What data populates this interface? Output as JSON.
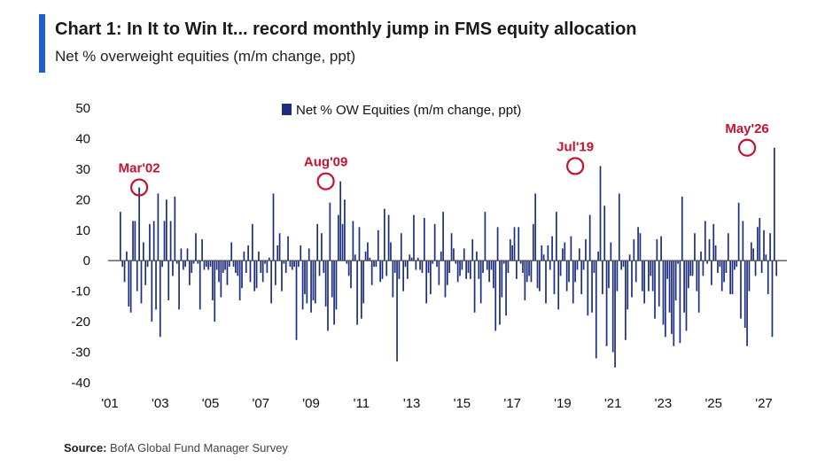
{
  "title": "Chart 1: In It to Win It... record monthly jump in FMS equity allocation",
  "subtitle": "Net % overweight equities (m/m change, ppt)",
  "source_label": "Source:",
  "source_text": "BofA Global Fund Manager Survey",
  "colors": {
    "accent": "#1f5fd1",
    "bar": "#1c2f7e",
    "annotation": "#c4122f"
  },
  "chart_data": {
    "type": "bar",
    "series": [
      {
        "name": "Net % OW Equities (m/m change, ppt)",
        "start": "2001-06",
        "values": [
          16,
          -2,
          -7,
          3,
          -15,
          -17,
          13,
          13,
          -10,
          24,
          -14,
          6,
          -8,
          -2,
          12,
          -20,
          13,
          -16,
          22,
          -25,
          -2,
          13,
          20,
          -13,
          13,
          -5,
          21,
          -1,
          -16,
          4,
          -3,
          -2,
          4,
          -8,
          -4,
          -1,
          9,
          -1,
          -16,
          7,
          -3,
          -2,
          -3,
          -2,
          -13,
          -20,
          -3,
          -7,
          -12,
          -4,
          -3,
          -8,
          -2,
          6,
          -2,
          -4,
          -5,
          -13,
          -9,
          3,
          -4,
          5,
          -7,
          12,
          -10,
          -9,
          3,
          -4,
          -7,
          -1,
          -4,
          1,
          -14,
          22,
          -8,
          5,
          9,
          -10,
          -1,
          -4,
          8,
          -2,
          -3,
          -2,
          -26,
          -2,
          5,
          -16,
          -11,
          -14,
          4,
          -17,
          -13,
          -14,
          12,
          -5,
          9,
          -4,
          -15,
          -23,
          19,
          -12,
          -21,
          -16,
          15,
          26,
          12,
          20,
          -1,
          -5,
          -9,
          13,
          2,
          -21,
          11,
          -19,
          -14,
          3,
          6,
          1,
          -8,
          -2,
          -2,
          10,
          -7,
          -6,
          17,
          -5,
          15,
          6,
          -12,
          -4,
          -33,
          -6,
          9,
          -10,
          -2,
          -6,
          2,
          1,
          15,
          -3,
          1,
          -3,
          -4,
          14,
          -14,
          -4,
          -11,
          -1,
          12,
          -2,
          -8,
          3,
          16,
          -12,
          -8,
          -4,
          9,
          4,
          -1,
          -7,
          -5,
          -3,
          4,
          -6,
          -4,
          -6,
          7,
          -17,
          3,
          -6,
          -14,
          -4,
          16,
          -3,
          -7,
          -3,
          -9,
          -23,
          11,
          -21,
          -12,
          -1,
          -18,
          -4,
          7,
          5,
          11,
          -6,
          11,
          -1,
          -4,
          -13,
          -7,
          -5,
          -7,
          12,
          22,
          -9,
          -10,
          5,
          2,
          -14,
          5,
          -3,
          8,
          -11,
          16,
          -16,
          -5,
          4,
          6,
          -10,
          -7,
          8,
          -14,
          -7,
          -3,
          4,
          -11,
          -3,
          7,
          -18,
          15,
          -17,
          -4,
          -32,
          3,
          31,
          -11,
          18,
          -28,
          -9,
          6,
          -30,
          -35,
          -10,
          22,
          -3,
          -2,
          -26,
          -16,
          2,
          -12,
          7,
          -7,
          11,
          9,
          -10,
          -14,
          0,
          -10,
          -5,
          -10,
          -19,
          7,
          -15,
          8,
          -21,
          -25,
          -6,
          -17,
          -24,
          -28,
          -13,
          -1,
          -27,
          21,
          -17,
          -23,
          -9,
          -5,
          -5,
          9,
          -10,
          -17,
          3,
          -5,
          13,
          -1,
          7,
          -8,
          12,
          5,
          -4,
          -2,
          -10,
          -7,
          -4,
          9,
          -11,
          -11,
          -3,
          -2,
          19,
          -19,
          13,
          -22,
          -28,
          -10,
          6,
          4,
          -5,
          11,
          14,
          -4,
          10,
          2,
          -11,
          9,
          -25,
          37,
          -5
        ]
      }
    ],
    "xlim": [
      2001,
      2027
    ],
    "ylim": [
      -40,
      50
    ],
    "yticks": [
      -40,
      -30,
      -20,
      -10,
      0,
      10,
      20,
      30,
      40,
      50
    ],
    "ytick_labels": [
      "-40",
      "-30",
      "-20",
      "-10",
      "0",
      "10",
      "20",
      "30",
      "40",
      "50"
    ],
    "xticks": [
      2001,
      2003,
      2005,
      2007,
      2009,
      2011,
      2013,
      2015,
      2017,
      2019,
      2021,
      2023,
      2025,
      2027
    ],
    "xtick_labels": [
      "'01",
      "'03",
      "'05",
      "'07",
      "'09",
      "'11",
      "'13",
      "'15",
      "'17",
      "'19",
      "'21",
      "'23",
      "'25",
      "'27"
    ],
    "annotations": [
      {
        "label": "Mar'02",
        "date": "2002-03",
        "value": 24
      },
      {
        "label": "Aug'09",
        "date": "2009-08",
        "value": 26
      },
      {
        "label": "Jul'19",
        "date": "2019-07",
        "value": 31
      },
      {
        "label": "May'26",
        "date": "2026-05",
        "value": 37
      }
    ],
    "legend_position": "top-center",
    "grid": false
  }
}
